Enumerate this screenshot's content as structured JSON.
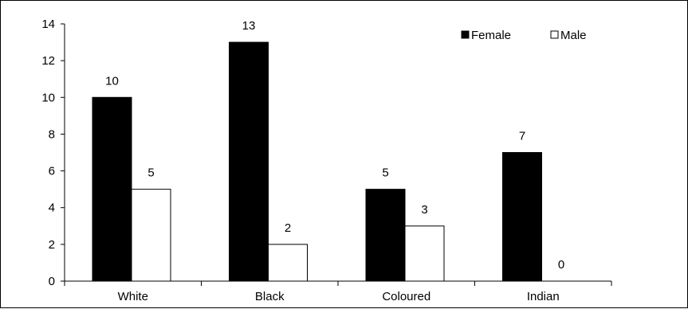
{
  "chart_data": {
    "type": "bar",
    "title": "",
    "xlabel": "",
    "ylabel": "",
    "categories": [
      "White",
      "Black",
      "Coloured",
      "Indian"
    ],
    "series": [
      {
        "name": "Female",
        "values": [
          10,
          13,
          5,
          7
        ],
        "fill": "#000000"
      },
      {
        "name": "Male",
        "values": [
          5,
          2,
          3,
          0
        ],
        "fill": "#ffffff"
      }
    ],
    "ylim": [
      0,
      14
    ],
    "yticks": [
      0,
      2,
      4,
      6,
      8,
      10,
      12,
      14
    ],
    "grid": false,
    "legend_position": "top-right",
    "data_labels": true
  }
}
